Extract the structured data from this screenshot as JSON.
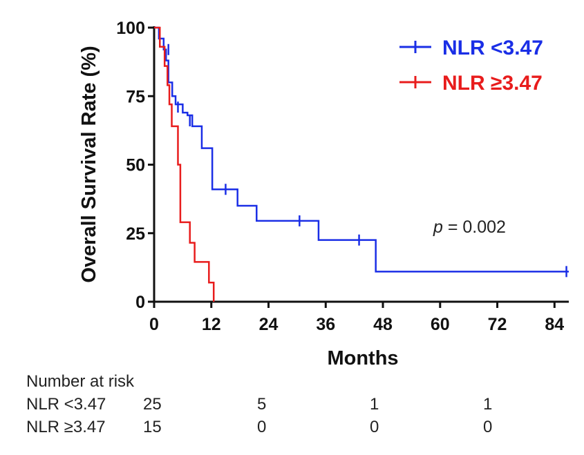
{
  "chart_data": {
    "type": "line",
    "subtype": "kaplan-meier",
    "ylabel": "Overall Survival Rate (%)",
    "xlabel": "Months",
    "xlim": [
      0,
      87
    ],
    "ylim": [
      0,
      100
    ],
    "xticks": [
      0,
      12,
      24,
      36,
      48,
      60,
      72,
      84
    ],
    "yticks": [
      0,
      25,
      50,
      75,
      100
    ],
    "legend_position": "top-right",
    "annotation": {
      "italic": "p",
      "text": " = 0.002"
    },
    "series": [
      {
        "name": "NLR <3.47",
        "color": "#1a2ee6",
        "steps": [
          [
            0,
            100
          ],
          [
            1,
            96
          ],
          [
            2,
            92
          ],
          [
            2.5,
            88
          ],
          [
            3,
            80
          ],
          [
            3.8,
            75
          ],
          [
            4.5,
            72
          ],
          [
            6,
            69
          ],
          [
            7,
            68
          ],
          [
            8,
            64
          ],
          [
            10,
            56
          ],
          [
            12.2,
            41
          ],
          [
            17.5,
            35
          ],
          [
            21.5,
            29.5
          ],
          [
            34.5,
            22.5
          ],
          [
            46.5,
            11
          ],
          [
            87,
            11
          ]
        ],
        "censored": [
          [
            3,
            92
          ],
          [
            5,
            71
          ],
          [
            7.5,
            66
          ],
          [
            15,
            41
          ],
          [
            30.5,
            29.5
          ],
          [
            43,
            22.5
          ],
          [
            86.5,
            11
          ]
        ]
      },
      {
        "name": "NLR ≥3.47",
        "color": "#e81c1c",
        "steps": [
          [
            0,
            100
          ],
          [
            1.2,
            93
          ],
          [
            2.2,
            86
          ],
          [
            2.8,
            79
          ],
          [
            3.2,
            72
          ],
          [
            3.7,
            64
          ],
          [
            5,
            50
          ],
          [
            5.5,
            29
          ],
          [
            7.5,
            21.5
          ],
          [
            8.5,
            14.5
          ],
          [
            11.5,
            7
          ],
          [
            12.5,
            0
          ]
        ],
        "censored": []
      }
    ]
  },
  "risk_table": {
    "title": "Number at risk",
    "rows": [
      {
        "label": "NLR <3.47",
        "values": [
          "25",
          "5",
          "1",
          "1"
        ]
      },
      {
        "label": "NLR ≥3.47",
        "values": [
          "15",
          "0",
          "0",
          "0"
        ]
      }
    ]
  }
}
